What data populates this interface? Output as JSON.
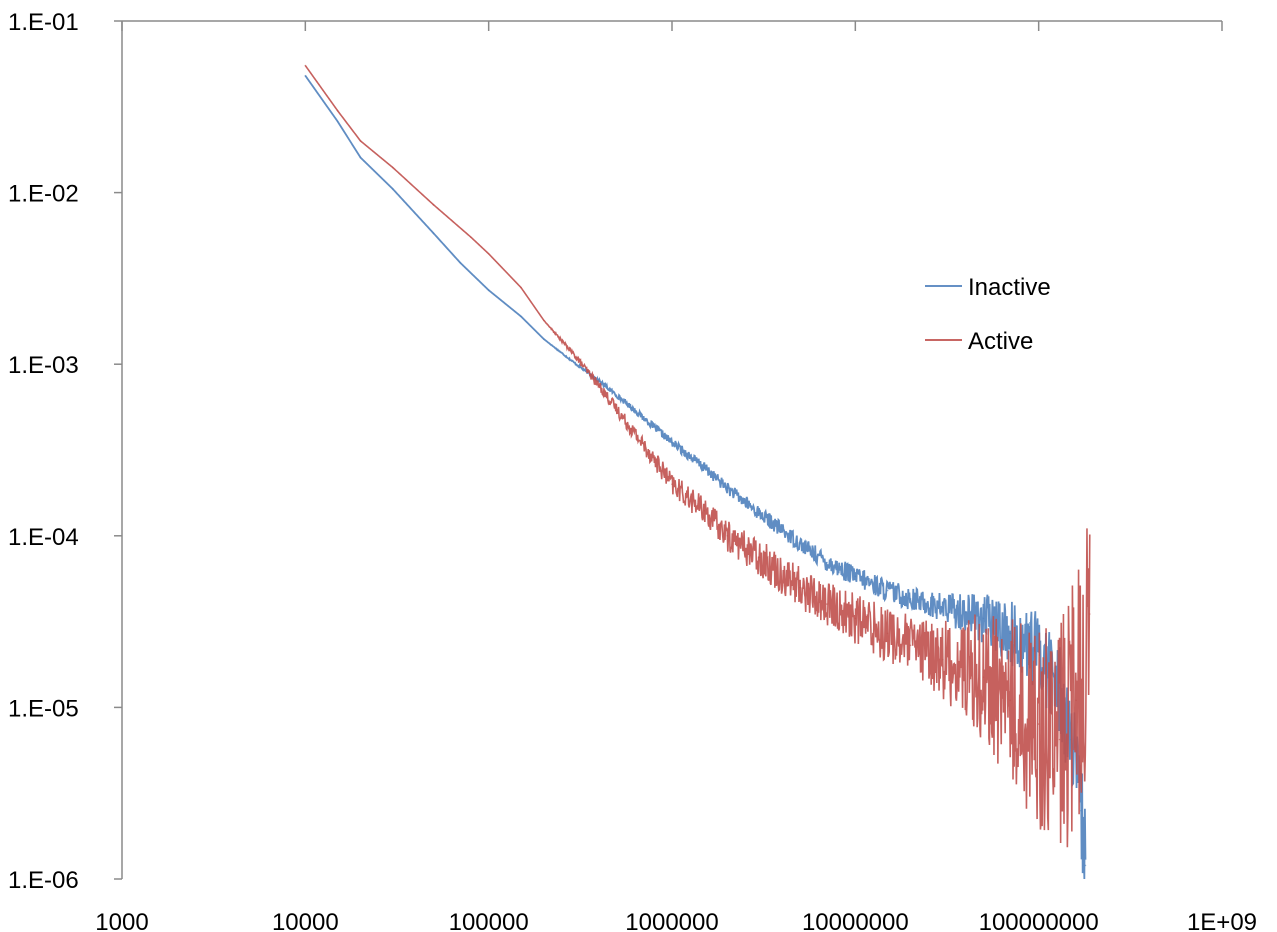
{
  "chart_data": {
    "type": "line",
    "title": "",
    "xlabel": "",
    "ylabel": "",
    "x_scale": "log",
    "y_scale": "log",
    "xlim": [
      1000,
      1000000000
    ],
    "ylim": [
      1e-06,
      0.1
    ],
    "x_tick_labels": [
      "1000",
      "10000",
      "100000",
      "1000000",
      "10000000",
      "100000000",
      "1E+09"
    ],
    "y_tick_labels": [
      "1.E-01",
      "1.E-02",
      "1.E-03",
      "1.E-04",
      "1.E-05",
      "1.E-06"
    ],
    "grid": false,
    "legend_position": "right",
    "series": [
      {
        "name": "Inactive",
        "color": "#4F81BD",
        "points": [
          [
            10000,
            0.048
          ],
          [
            15000,
            0.026
          ],
          [
            20000,
            0.016
          ],
          [
            30000,
            0.0105
          ],
          [
            50000,
            0.0058
          ],
          [
            70000,
            0.0039
          ],
          [
            100000,
            0.0027
          ],
          [
            150000,
            0.0019
          ],
          [
            200000,
            0.0014
          ],
          [
            300000,
            0.001
          ],
          [
            400000,
            0.0008
          ],
          [
            600000,
            0.00056
          ],
          [
            800000,
            0.00043
          ],
          [
            1000000,
            0.00035
          ],
          [
            1500000,
            0.00025
          ],
          [
            2000000,
            0.00019
          ],
          [
            3000000,
            0.000135
          ],
          [
            5000000,
            9e-05
          ],
          [
            7000000,
            7e-05
          ],
          [
            10000000,
            5.8e-05
          ],
          [
            15000000,
            4.8e-05
          ],
          [
            20000000,
            4.3e-05
          ],
          [
            30000000,
            3.8e-05
          ],
          [
            40000000,
            3.6e-05
          ],
          [
            50000000,
            3.3e-05
          ],
          [
            70000000,
            2.7e-05
          ],
          [
            100000000,
            2.1e-05
          ],
          [
            130000000,
            1.3e-05
          ],
          [
            150000000,
            6.5e-06
          ],
          [
            170000000,
            2.5e-06
          ],
          [
            180000000,
            1.2e-06
          ]
        ]
      },
      {
        "name": "Active",
        "color": "#C0504D",
        "points": [
          [
            10000,
            0.055
          ],
          [
            15000,
            0.03
          ],
          [
            20000,
            0.02
          ],
          [
            30000,
            0.014
          ],
          [
            50000,
            0.0085
          ],
          [
            80000,
            0.0055
          ],
          [
            100000,
            0.0044
          ],
          [
            150000,
            0.0028
          ],
          [
            200000,
            0.0018
          ],
          [
            300000,
            0.0011
          ],
          [
            400000,
            0.00075
          ],
          [
            600000,
            0.00042
          ],
          [
            800000,
            0.00028
          ],
          [
            1000000,
            0.0002
          ],
          [
            1500000,
            0.00014
          ],
          [
            2000000,
            0.0001
          ],
          [
            3000000,
            7.5e-05
          ],
          [
            5000000,
            5e-05
          ],
          [
            7000000,
            4e-05
          ],
          [
            10000000,
            3.3e-05
          ],
          [
            15000000,
            2.7e-05
          ],
          [
            20000000,
            2.3e-05
          ],
          [
            30000000,
            1.9e-05
          ],
          [
            50000000,
            1.5e-05
          ],
          [
            70000000,
            1.1e-05
          ],
          [
            100000000,
            8e-06
          ],
          [
            130000000,
            6.5e-06
          ],
          [
            160000000,
            1.1e-05
          ],
          [
            190000000,
            3.5e-05
          ]
        ]
      }
    ]
  }
}
